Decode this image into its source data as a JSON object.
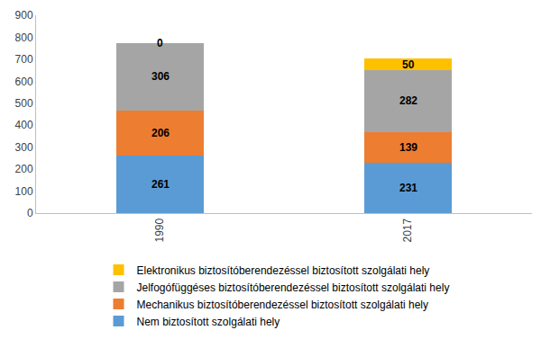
{
  "chart_data": {
    "type": "bar",
    "stacked": true,
    "data_labels": true,
    "grid": false,
    "legend": "bottom",
    "categories": [
      "1990",
      "2017"
    ],
    "series": [
      {
        "name": "Nem biztosított szolgálati hely",
        "color": "#5b9bd5",
        "values": [
          261,
          231
        ]
      },
      {
        "name": "Mechanikus biztosítóberendezéssel biztosított szolgálati hely",
        "color": "#ed7d31",
        "values": [
          206,
          139
        ]
      },
      {
        "name": "Jelfogófüggéses biztosítóberendezéssel biztosított szolgálati hely",
        "color": "#a5a5a5",
        "values": [
          306,
          282
        ]
      },
      {
        "name": "Elektronikus biztosítóberendezéssel biztosított szolgálati hely",
        "color": "#ffc000",
        "values": [
          0,
          50
        ]
      }
    ],
    "ylim": [
      0,
      900
    ],
    "yticks": [
      0,
      100,
      200,
      300,
      400,
      500,
      600,
      700,
      800,
      900
    ]
  }
}
